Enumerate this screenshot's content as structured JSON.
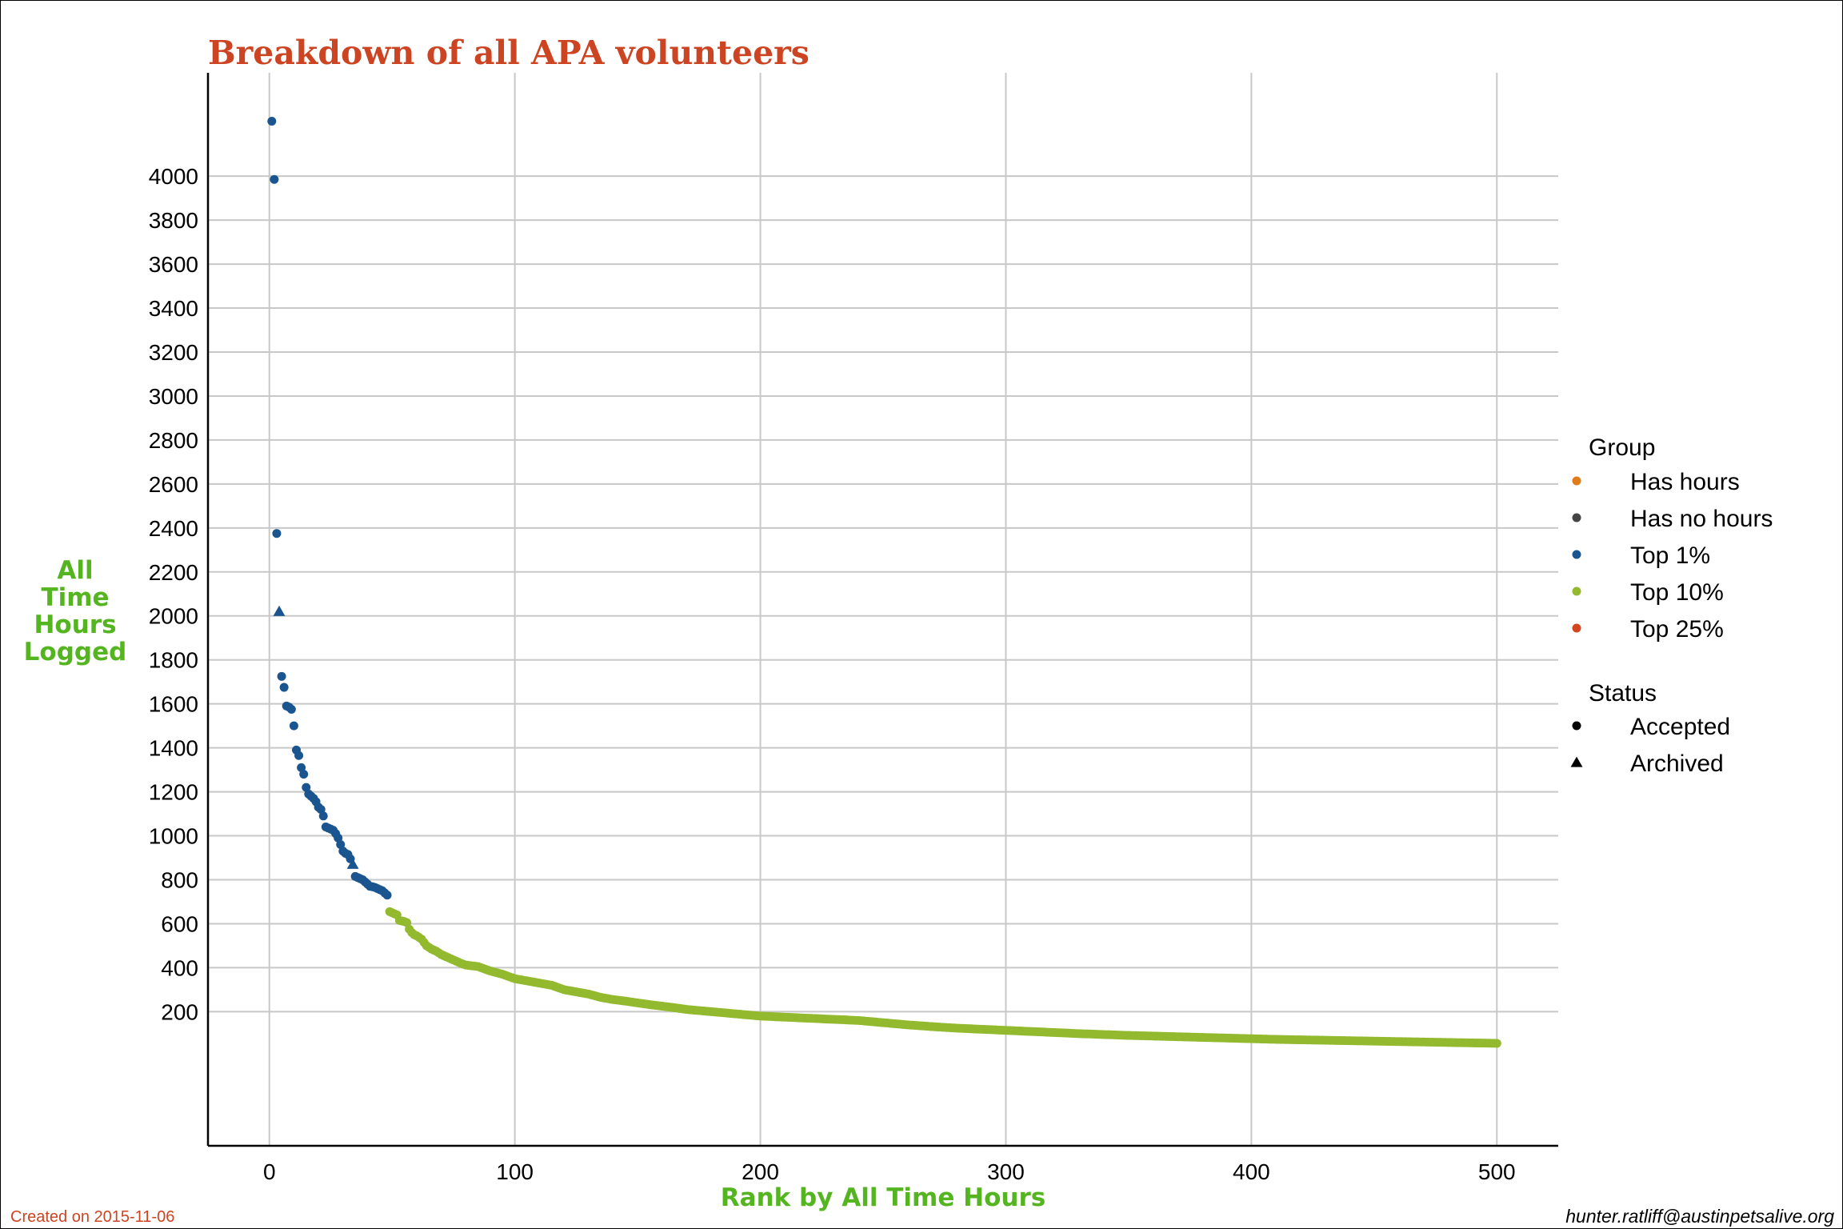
{
  "chart_data": {
    "type": "scatter",
    "title": "Breakdown of all APA volunteers",
    "xlabel": "Rank by All Time Hours",
    "ylabel_lines": [
      "All",
      "Time",
      "Hours",
      "Logged"
    ],
    "xlim": [
      -25,
      525
    ],
    "ylim": [
      -410,
      4470
    ],
    "x_ticks": [
      0,
      100,
      200,
      300,
      400,
      500
    ],
    "y_ticks": [
      200,
      400,
      600,
      800,
      1000,
      1200,
      1400,
      1600,
      1800,
      2000,
      2200,
      2400,
      2600,
      2800,
      3000,
      3200,
      3400,
      3600,
      3800,
      4000
    ],
    "grid": true,
    "legend_placement": "right",
    "legend": {
      "group_title": "Group",
      "groups": [
        {
          "name": "Has hours",
          "color": "#e07b1a"
        },
        {
          "name": "Has no hours",
          "color": "#444444"
        },
        {
          "name": "Top 1%",
          "color": "#1a5590"
        },
        {
          "name": "Top 10%",
          "color": "#93ba2e"
        },
        {
          "name": "Top 25%",
          "color": "#d2451e"
        }
      ],
      "status_title": "Status",
      "statuses": [
        {
          "name": "Accepted",
          "shape": "circle"
        },
        {
          "name": "Archived",
          "shape": "triangle"
        }
      ]
    },
    "series": [
      {
        "group": "Top 1%",
        "color": "#1a5590",
        "points": [
          [
            1,
            4250,
            "circle"
          ],
          [
            2,
            3985,
            "circle"
          ],
          [
            3,
            2375,
            "circle"
          ],
          [
            4,
            2020,
            "triangle"
          ],
          [
            5,
            1725,
            "circle"
          ],
          [
            6,
            1675,
            "circle"
          ],
          [
            7,
            1590,
            "circle"
          ],
          [
            8,
            1585,
            "circle"
          ],
          [
            9,
            1575,
            "circle"
          ],
          [
            10,
            1500,
            "circle"
          ],
          [
            11,
            1390,
            "circle"
          ],
          [
            12,
            1365,
            "circle"
          ],
          [
            13,
            1310,
            "circle"
          ],
          [
            14,
            1280,
            "circle"
          ],
          [
            15,
            1220,
            "circle"
          ],
          [
            16,
            1190,
            "circle"
          ],
          [
            17,
            1180,
            "circle"
          ],
          [
            18,
            1170,
            "circle"
          ],
          [
            19,
            1155,
            "circle"
          ],
          [
            20,
            1130,
            "circle"
          ],
          [
            21,
            1120,
            "circle"
          ],
          [
            22,
            1090,
            "circle"
          ],
          [
            23,
            1040,
            "circle"
          ],
          [
            24,
            1035,
            "circle"
          ],
          [
            25,
            1030,
            "circle"
          ],
          [
            26,
            1025,
            "circle"
          ],
          [
            27,
            1010,
            "circle"
          ],
          [
            28,
            990,
            "circle"
          ],
          [
            29,
            960,
            "circle"
          ],
          [
            30,
            930,
            "circle"
          ],
          [
            31,
            920,
            "circle"
          ],
          [
            32,
            915,
            "circle"
          ],
          [
            33,
            895,
            "circle"
          ],
          [
            34,
            870,
            "triangle"
          ],
          [
            35,
            815,
            "circle"
          ],
          [
            36,
            810,
            "circle"
          ],
          [
            37,
            805,
            "circle"
          ],
          [
            38,
            800,
            "circle"
          ],
          [
            39,
            790,
            "circle"
          ],
          [
            40,
            780,
            "circle"
          ],
          [
            41,
            770,
            "circle"
          ],
          [
            42,
            768,
            "circle"
          ],
          [
            43,
            765,
            "circle"
          ],
          [
            44,
            760,
            "circle"
          ],
          [
            45,
            755,
            "circle"
          ],
          [
            46,
            750,
            "circle"
          ],
          [
            47,
            740,
            "circle"
          ],
          [
            48,
            730,
            "circle"
          ]
        ]
      },
      {
        "group": "Top 10%",
        "color": "#93ba2e",
        "points": [
          [
            49,
            655,
            "circle"
          ],
          [
            50,
            650,
            "circle"
          ],
          [
            51,
            645,
            "circle"
          ],
          [
            52,
            640,
            "circle"
          ],
          [
            53,
            615,
            "circle"
          ],
          [
            54,
            612,
            "circle"
          ],
          [
            55,
            610,
            "circle"
          ],
          [
            56,
            605,
            "circle"
          ],
          [
            57,
            575,
            "circle"
          ],
          [
            58,
            560,
            "circle"
          ],
          [
            59,
            550,
            "circle"
          ],
          [
            60,
            545,
            "circle"
          ],
          [
            62,
            530,
            "circle"
          ],
          [
            64,
            500,
            "circle"
          ],
          [
            66,
            485,
            "circle"
          ],
          [
            68,
            475,
            "circle"
          ],
          [
            70,
            460,
            "circle"
          ],
          [
            72,
            450,
            "circle"
          ],
          [
            74,
            440,
            "circle"
          ],
          [
            76,
            430,
            "circle"
          ],
          [
            78,
            420,
            "circle"
          ],
          [
            80,
            412,
            "circle"
          ],
          [
            85,
            405,
            "circle"
          ],
          [
            90,
            385,
            "circle"
          ],
          [
            95,
            370,
            "circle"
          ],
          [
            100,
            350,
            "circle"
          ],
          [
            105,
            340,
            "circle"
          ],
          [
            110,
            330,
            "circle"
          ],
          [
            115,
            320,
            "circle"
          ],
          [
            120,
            300,
            "circle"
          ],
          [
            125,
            290,
            "circle"
          ],
          [
            130,
            280,
            "circle"
          ],
          [
            135,
            265,
            "circle"
          ],
          [
            140,
            255,
            "circle"
          ],
          [
            145,
            248,
            "circle"
          ],
          [
            150,
            240,
            "circle"
          ],
          [
            155,
            232,
            "circle"
          ],
          [
            160,
            225,
            "circle"
          ],
          [
            165,
            218,
            "circle"
          ],
          [
            170,
            210,
            "circle"
          ],
          [
            175,
            205,
            "circle"
          ],
          [
            180,
            200,
            "circle"
          ],
          [
            185,
            195,
            "circle"
          ],
          [
            190,
            190,
            "circle"
          ],
          [
            195,
            185,
            "circle"
          ],
          [
            200,
            180,
            "circle"
          ],
          [
            210,
            175,
            "circle"
          ],
          [
            220,
            170,
            "circle"
          ],
          [
            230,
            165,
            "circle"
          ],
          [
            240,
            160,
            "circle"
          ],
          [
            250,
            150,
            "circle"
          ],
          [
            260,
            140,
            "circle"
          ],
          [
            270,
            132,
            "circle"
          ],
          [
            280,
            125,
            "circle"
          ],
          [
            290,
            120,
            "circle"
          ],
          [
            300,
            115,
            "circle"
          ],
          [
            310,
            110,
            "circle"
          ],
          [
            320,
            105,
            "circle"
          ],
          [
            330,
            100,
            "circle"
          ],
          [
            340,
            96,
            "circle"
          ],
          [
            350,
            92,
            "circle"
          ],
          [
            360,
            89,
            "circle"
          ],
          [
            370,
            86,
            "circle"
          ],
          [
            380,
            83,
            "circle"
          ],
          [
            390,
            80,
            "circle"
          ],
          [
            400,
            77,
            "circle"
          ],
          [
            410,
            74,
            "circle"
          ],
          [
            420,
            72,
            "circle"
          ],
          [
            430,
            70,
            "circle"
          ],
          [
            440,
            68,
            "circle"
          ],
          [
            450,
            66,
            "circle"
          ],
          [
            460,
            64,
            "circle"
          ],
          [
            470,
            62,
            "circle"
          ],
          [
            480,
            60,
            "circle"
          ],
          [
            490,
            58,
            "circle"
          ],
          [
            500,
            56,
            "circle"
          ]
        ]
      }
    ]
  },
  "footer": {
    "created": "Created on 2015-11-06",
    "email": "hunter.ratliff@austinpetsalive.org"
  }
}
